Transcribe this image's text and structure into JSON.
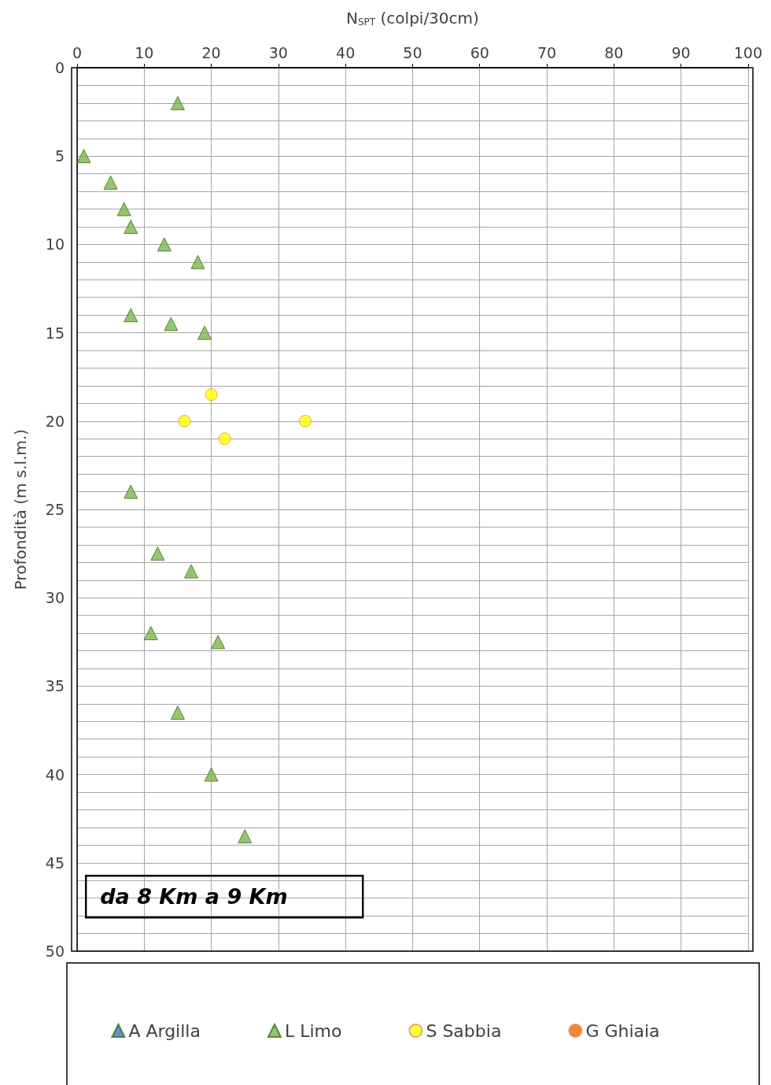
{
  "chart_data": {
    "type": "scatter",
    "xlabel": "N$_{SPT}$ (colpi/30cm)",
    "ylabel": "Profondità (m s.l.m.)",
    "xlim": [
      0,
      100
    ],
    "xticks": [
      0,
      10,
      20,
      30,
      40,
      50,
      60,
      70,
      80,
      90,
      100
    ],
    "ylim": [
      50,
      0
    ],
    "yticks": [
      0,
      {
        "value": 1,
        "label": null
      },
      {
        "value": 2,
        "label": null
      },
      {
        "value": 3,
        "label": null
      },
      {
        "value": 4,
        "label": null
      },
      5,
      {
        "value": 6,
        "label": null
      },
      {
        "value": 7,
        "label": null
      },
      {
        "value": 8,
        "label": null
      },
      {
        "value": 9,
        "label": null
      },
      10,
      {
        "value": 11,
        "label": null
      },
      {
        "value": 12,
        "label": null
      },
      {
        "value": 13,
        "label": null
      },
      {
        "value": 14,
        "label": null
      },
      15,
      {
        "value": 16,
        "label": null
      },
      {
        "value": 17,
        "label": null
      },
      {
        "value": 18,
        "label": null
      },
      {
        "value": 19,
        "label": null
      },
      20,
      {
        "value": 21,
        "label": null
      },
      {
        "value": 22,
        "label": null
      },
      {
        "value": 23,
        "label": null
      },
      {
        "value": 24,
        "label": null
      },
      25,
      {
        "value": 26,
        "label": null
      },
      {
        "value": 27,
        "label": null
      },
      {
        "value": 28,
        "label": null
      },
      {
        "value": 29,
        "label": null
      },
      30,
      {
        "value": 31,
        "label": null
      },
      {
        "value": 32,
        "label": null
      },
      {
        "value": 33,
        "label": null
      },
      {
        "value": 34,
        "label": null
      },
      35,
      {
        "value": 36,
        "label": null
      },
      {
        "value": 37,
        "label": null
      },
      {
        "value": 38,
        "label": null
      },
      {
        "value": 39,
        "label": null
      },
      40,
      {
        "value": 41,
        "label": null
      },
      {
        "value": 42,
        "label": null
      },
      {
        "value": 43,
        "label": null
      },
      {
        "value": 44,
        "label": null
      },
      45,
      {
        "value": 46,
        "label": null
      },
      {
        "value": 47,
        "label": null
      },
      {
        "value": 48,
        "label": null
      },
      {
        "value": 49,
        "label": null
      },
      50
    ],
    "grid": true,
    "legend": "bottom",
    "annotations": [
      "da 8 Km a 9 Km"
    ],
    "series": [
      {
        "name": "A Argilla",
        "color": "#4472c4",
        "marker": "triangle"
      },
      {
        "name": "L Limo",
        "color": "#7ab648",
        "marker": "triangle",
        "x": [
          15,
          1,
          5,
          7,
          8,
          13,
          18,
          8,
          14,
          19,
          8,
          12,
          17,
          11,
          21,
          15,
          20,
          25
        ],
        "values": [
          2,
          5,
          6.5,
          8,
          9,
          10,
          11,
          14,
          14.5,
          15,
          24,
          27.5,
          28.5,
          32,
          32.5,
          36.5,
          40,
          43.5
        ]
      },
      {
        "name": "S Sabbia",
        "color": "#ffff00",
        "marker": "circle",
        "x": [
          20,
          16,
          34,
          22
        ],
        "values": [
          18.5,
          20,
          20,
          21
        ]
      },
      {
        "name": "G Ghiaia",
        "color": "#e36c09",
        "marker": "circle"
      }
    ]
  }
}
